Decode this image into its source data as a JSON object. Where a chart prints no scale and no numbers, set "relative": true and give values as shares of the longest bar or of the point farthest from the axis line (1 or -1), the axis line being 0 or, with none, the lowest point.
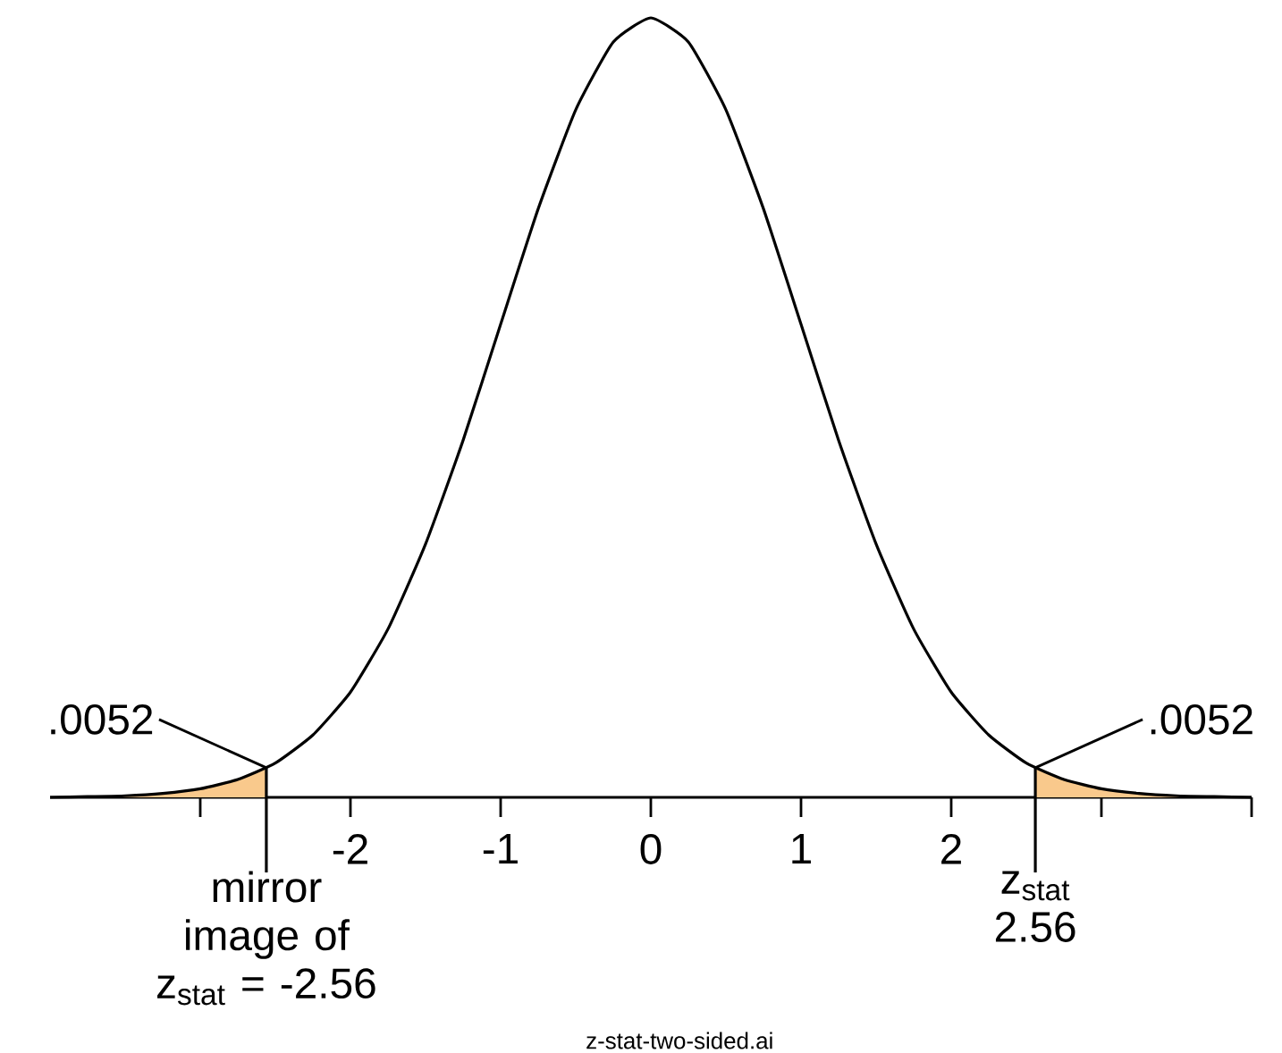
{
  "chart_data": {
    "type": "line",
    "relative": true,
    "x": [
      -4,
      -3.75,
      -3.5,
      -3.25,
      -3,
      -2.75,
      -2.5,
      -2.25,
      -2,
      -1.75,
      -1.5,
      -1.25,
      -1,
      -0.75,
      -0.5,
      -0.25,
      0,
      0.25,
      0.5,
      0.75,
      1,
      1.25,
      1.5,
      1.75,
      2,
      2.25,
      2.5,
      2.75,
      3,
      3.25,
      3.5,
      3.75,
      4
    ],
    "series": [
      {
        "type": "area",
        "color": "#f9c98c",
        "x": [
          -4,
          -3.5,
          -3,
          -2.75,
          -2.56
        ],
        "values": [
          0,
          0.002,
          0.011,
          0.023,
          0.038
        ]
      },
      {
        "type": "area",
        "color": "#f9c98c",
        "x": [
          2.56,
          2.75,
          3,
          3.5,
          4
        ],
        "values": [
          0.038,
          0.023,
          0.011,
          0.002,
          0
        ]
      },
      {
        "type": "line",
        "color": "#000000",
        "values": [
          0,
          0.001,
          0.002,
          0.005,
          0.011,
          0.023,
          0.044,
          0.08,
          0.135,
          0.216,
          0.325,
          0.458,
          0.607,
          0.755,
          0.882,
          0.969,
          1,
          0.969,
          0.882,
          0.755,
          0.607,
          0.458,
          0.325,
          0.216,
          0.135,
          0.08,
          0.044,
          0.023,
          0.011,
          0.005,
          0.002,
          0.001,
          0
        ]
      }
    ],
    "xlim": [
      -4,
      4
    ],
    "xticks": [
      {
        "value": -3,
        "label": null
      },
      -2,
      -1,
      0,
      1,
      2,
      {
        "value": 3,
        "label": null
      },
      {
        "value": 4,
        "label": null
      }
    ],
    "tick_labels": "x",
    "ref_lines": [
      {
        "axis": "x",
        "value": -2.56,
        "label": "mirror image of z$_{stat}$ = -2.56"
      },
      {
        "axis": "x",
        "value": 2.56,
        "label": "z$_{stat}$ 2.56"
      }
    ],
    "annotations": [
      {
        "text": ".0052",
        "x": -2.56,
        "y": 0.038
      },
      {
        "text": ".0052",
        "x": 2.56,
        "y": 0.038
      },
      "z-stat-two-sided.ai"
    ]
  }
}
